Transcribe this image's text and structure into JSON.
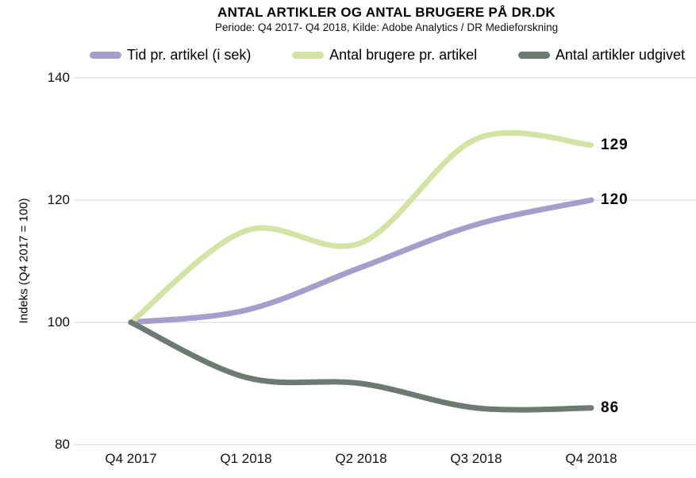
{
  "chart_data": {
    "type": "line",
    "title": "ANTAL ARTIKLER OG ANTAL BRUGERE PÅ DR.DK",
    "subtitle": "Periode: Q4 2017- Q4 2018, Kilde: Adobe Analytics / DR Medieforskning",
    "categories": [
      "Q4 2017",
      "Q1 2018",
      "Q2 2018",
      "Q3 2018",
      "Q4 2018"
    ],
    "series": [
      {
        "name": "Tid pr. artikel (i sek)",
        "color": "#a79dcd",
        "values": [
          100,
          102,
          109,
          116,
          120
        ],
        "end_label": "120"
      },
      {
        "name": "Antal brugere pr. artikel",
        "color": "#d3e3a3",
        "values": [
          100,
          115,
          113,
          130,
          129
        ],
        "end_label": "129"
      },
      {
        "name": "Antal artikler udgivet",
        "color": "#6d7a72",
        "values": [
          100,
          91,
          90,
          86,
          86
        ],
        "end_label": "86"
      }
    ],
    "ylabel": "Indeks (Q4 2017 = 100)",
    "yticks": [
      140,
      120,
      100,
      80
    ],
    "ylim": [
      80,
      140
    ],
    "grid": "horizontal",
    "gridline_color": "#e3e3e3",
    "legend_position": "top",
    "background": "#ffffff"
  }
}
